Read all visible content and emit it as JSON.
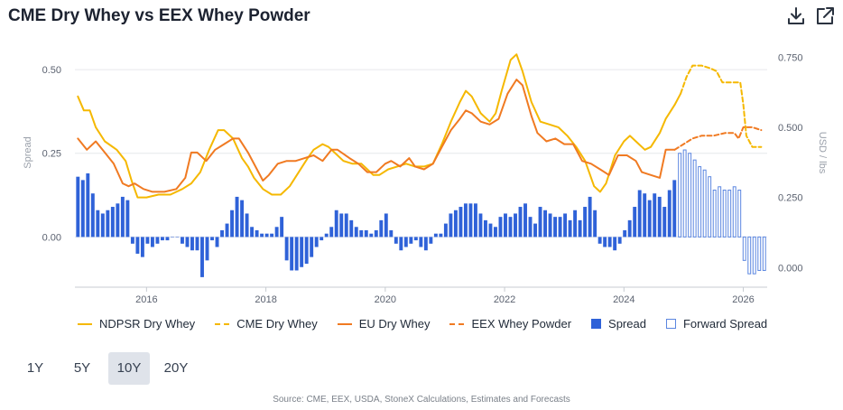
{
  "title": "CME Dry Whey vs EEX Whey Powder",
  "header_icons": [
    "download-icon",
    "external-link-icon"
  ],
  "legend": [
    {
      "label": "NDPSR Dry Whey",
      "style": "solid",
      "color": "#f5b800"
    },
    {
      "label": "CME Dry Whey",
      "style": "dashed",
      "color": "#f5b800"
    },
    {
      "label": "EU Dry Whey",
      "style": "solid",
      "color": "#f07a22"
    },
    {
      "label": "EEX Whey Powder",
      "style": "dashed",
      "color": "#f07a22"
    },
    {
      "label": "Spread",
      "style": "box",
      "color": "#2f62d8"
    },
    {
      "label": "Forward Spread",
      "style": "box-outline",
      "color": "#5b86e0"
    }
  ],
  "ranges": [
    {
      "label": "1Y",
      "active": false
    },
    {
      "label": "5Y",
      "active": false
    },
    {
      "label": "10Y",
      "active": true
    },
    {
      "label": "20Y",
      "active": false
    }
  ],
  "source": "Source: CME, EEX, USDA, StoneX Calculations, Estimates and Forecasts",
  "chart_data": {
    "type": "line",
    "x_ticks": [
      "2016",
      "2018",
      "2020",
      "2022",
      "2024",
      "2026"
    ],
    "xlim": [
      2014.8,
      2026.4
    ],
    "left_axis": {
      "label": "Spread",
      "ticks": [
        "0.00",
        "0.25",
        "0.50"
      ],
      "ylim": [
        -0.15,
        0.6
      ]
    },
    "right_axis": {
      "label": "USD / lbs",
      "ticks": [
        "0.000",
        "0.250",
        "0.500",
        "0.750"
      ],
      "ylim": [
        -0.07,
        0.825
      ]
    },
    "colors": {
      "ndpsr": "#f5b800",
      "eu": "#f07a22",
      "spread": "#2f62d8",
      "forward": "#5b86e0",
      "grid": "#e6e8ec",
      "axis": "#c7cbd1"
    },
    "series": [
      {
        "name": "NDPSR Dry Whey",
        "axis": "right",
        "style": "solid",
        "color": "#f5b800",
        "points": [
          [
            2014.85,
            0.61
          ],
          [
            2014.95,
            0.56
          ],
          [
            2015.05,
            0.56
          ],
          [
            2015.15,
            0.5
          ],
          [
            2015.3,
            0.45
          ],
          [
            2015.5,
            0.42
          ],
          [
            2015.65,
            0.38
          ],
          [
            2015.75,
            0.31
          ],
          [
            2015.85,
            0.25
          ],
          [
            2016.0,
            0.25
          ],
          [
            2016.2,
            0.26
          ],
          [
            2016.4,
            0.26
          ],
          [
            2016.6,
            0.28
          ],
          [
            2016.75,
            0.3
          ],
          [
            2016.9,
            0.34
          ],
          [
            2017.05,
            0.42
          ],
          [
            2017.2,
            0.49
          ],
          [
            2017.3,
            0.49
          ],
          [
            2017.45,
            0.46
          ],
          [
            2017.6,
            0.39
          ],
          [
            2017.7,
            0.36
          ],
          [
            2017.8,
            0.32
          ],
          [
            2017.95,
            0.28
          ],
          [
            2018.1,
            0.26
          ],
          [
            2018.25,
            0.26
          ],
          [
            2018.4,
            0.29
          ],
          [
            2018.55,
            0.34
          ],
          [
            2018.7,
            0.39
          ],
          [
            2018.8,
            0.42
          ],
          [
            2018.95,
            0.44
          ],
          [
            2019.05,
            0.43
          ],
          [
            2019.15,
            0.41
          ],
          [
            2019.3,
            0.38
          ],
          [
            2019.45,
            0.37
          ],
          [
            2019.6,
            0.37
          ],
          [
            2019.7,
            0.35
          ],
          [
            2019.8,
            0.33
          ],
          [
            2019.9,
            0.33
          ],
          [
            2020.05,
            0.35
          ],
          [
            2020.2,
            0.36
          ],
          [
            2020.35,
            0.37
          ],
          [
            2020.5,
            0.36
          ],
          [
            2020.65,
            0.36
          ],
          [
            2020.8,
            0.37
          ],
          [
            2020.95,
            0.44
          ],
          [
            2021.1,
            0.52
          ],
          [
            2021.25,
            0.59
          ],
          [
            2021.35,
            0.63
          ],
          [
            2021.45,
            0.61
          ],
          [
            2021.6,
            0.55
          ],
          [
            2021.75,
            0.52
          ],
          [
            2021.85,
            0.55
          ],
          [
            2021.95,
            0.63
          ],
          [
            2022.1,
            0.74
          ],
          [
            2022.2,
            0.76
          ],
          [
            2022.3,
            0.7
          ],
          [
            2022.45,
            0.59
          ],
          [
            2022.6,
            0.52
          ],
          [
            2022.75,
            0.51
          ],
          [
            2022.9,
            0.5
          ],
          [
            2023.05,
            0.47
          ],
          [
            2023.2,
            0.43
          ],
          [
            2023.35,
            0.38
          ],
          [
            2023.5,
            0.29
          ],
          [
            2023.6,
            0.27
          ],
          [
            2023.7,
            0.3
          ],
          [
            2023.85,
            0.4
          ],
          [
            2024.0,
            0.45
          ],
          [
            2024.1,
            0.47
          ],
          [
            2024.2,
            0.45
          ],
          [
            2024.35,
            0.42
          ],
          [
            2024.45,
            0.43
          ],
          [
            2024.6,
            0.48
          ],
          [
            2024.7,
            0.53
          ],
          [
            2024.85,
            0.58
          ],
          [
            2024.95,
            0.62
          ]
        ]
      },
      {
        "name": "CME Dry Whey",
        "axis": "right",
        "style": "dashed",
        "color": "#f5b800",
        "points": [
          [
            2024.95,
            0.62
          ],
          [
            2025.05,
            0.68
          ],
          [
            2025.15,
            0.72
          ],
          [
            2025.3,
            0.72
          ],
          [
            2025.45,
            0.71
          ],
          [
            2025.55,
            0.7
          ],
          [
            2025.65,
            0.66
          ],
          [
            2025.8,
            0.66
          ],
          [
            2025.9,
            0.66
          ],
          [
            2025.95,
            0.66
          ],
          [
            2026.0,
            0.58
          ],
          [
            2026.05,
            0.47
          ],
          [
            2026.15,
            0.43
          ],
          [
            2026.3,
            0.43
          ]
        ]
      },
      {
        "name": "EU Dry Whey",
        "axis": "right",
        "style": "solid",
        "color": "#f07a22",
        "points": [
          [
            2014.85,
            0.46
          ],
          [
            2015.0,
            0.42
          ],
          [
            2015.15,
            0.45
          ],
          [
            2015.3,
            0.41
          ],
          [
            2015.45,
            0.37
          ],
          [
            2015.6,
            0.3
          ],
          [
            2015.7,
            0.29
          ],
          [
            2015.8,
            0.3
          ],
          [
            2015.95,
            0.28
          ],
          [
            2016.1,
            0.27
          ],
          [
            2016.3,
            0.27
          ],
          [
            2016.5,
            0.28
          ],
          [
            2016.65,
            0.32
          ],
          [
            2016.75,
            0.41
          ],
          [
            2016.85,
            0.41
          ],
          [
            2017.0,
            0.38
          ],
          [
            2017.15,
            0.42
          ],
          [
            2017.3,
            0.44
          ],
          [
            2017.45,
            0.46
          ],
          [
            2017.55,
            0.46
          ],
          [
            2017.7,
            0.41
          ],
          [
            2017.85,
            0.35
          ],
          [
            2017.95,
            0.31
          ],
          [
            2018.05,
            0.33
          ],
          [
            2018.2,
            0.37
          ],
          [
            2018.35,
            0.38
          ],
          [
            2018.5,
            0.38
          ],
          [
            2018.65,
            0.39
          ],
          [
            2018.8,
            0.4
          ],
          [
            2018.95,
            0.38
          ],
          [
            2019.1,
            0.42
          ],
          [
            2019.2,
            0.42
          ],
          [
            2019.4,
            0.39
          ],
          [
            2019.55,
            0.37
          ],
          [
            2019.7,
            0.34
          ],
          [
            2019.85,
            0.34
          ],
          [
            2020.0,
            0.37
          ],
          [
            2020.1,
            0.38
          ],
          [
            2020.25,
            0.36
          ],
          [
            2020.4,
            0.39
          ],
          [
            2020.5,
            0.36
          ],
          [
            2020.65,
            0.35
          ],
          [
            2020.8,
            0.37
          ],
          [
            2020.95,
            0.43
          ],
          [
            2021.1,
            0.49
          ],
          [
            2021.25,
            0.53
          ],
          [
            2021.35,
            0.56
          ],
          [
            2021.45,
            0.55
          ],
          [
            2021.6,
            0.52
          ],
          [
            2021.75,
            0.51
          ],
          [
            2021.9,
            0.53
          ],
          [
            2022.05,
            0.62
          ],
          [
            2022.2,
            0.67
          ],
          [
            2022.3,
            0.65
          ],
          [
            2022.45,
            0.54
          ],
          [
            2022.55,
            0.48
          ],
          [
            2022.7,
            0.45
          ],
          [
            2022.85,
            0.46
          ],
          [
            2023.0,
            0.44
          ],
          [
            2023.15,
            0.44
          ],
          [
            2023.3,
            0.38
          ],
          [
            2023.45,
            0.37
          ],
          [
            2023.6,
            0.35
          ],
          [
            2023.75,
            0.33
          ],
          [
            2023.9,
            0.4
          ],
          [
            2024.05,
            0.4
          ],
          [
            2024.2,
            0.38
          ],
          [
            2024.3,
            0.34
          ],
          [
            2024.45,
            0.33
          ],
          [
            2024.6,
            0.32
          ],
          [
            2024.7,
            0.42
          ],
          [
            2024.85,
            0.42
          ]
        ]
      },
      {
        "name": "EEX Whey Powder",
        "axis": "right",
        "style": "dashed",
        "color": "#f07a22",
        "points": [
          [
            2024.85,
            0.42
          ],
          [
            2025.0,
            0.44
          ],
          [
            2025.15,
            0.46
          ],
          [
            2025.3,
            0.47
          ],
          [
            2025.5,
            0.47
          ],
          [
            2025.7,
            0.48
          ],
          [
            2025.85,
            0.48
          ],
          [
            2025.92,
            0.46
          ],
          [
            2026.0,
            0.5
          ],
          [
            2026.15,
            0.5
          ],
          [
            2026.3,
            0.49
          ]
        ]
      }
    ],
    "spread": {
      "name": "Spread",
      "axis": "left",
      "start": 2014.85,
      "step": 0.0833,
      "values": [
        0.18,
        0.17,
        0.19,
        0.13,
        0.08,
        0.07,
        0.08,
        0.09,
        0.1,
        0.12,
        0.11,
        -0.02,
        -0.05,
        -0.06,
        -0.02,
        -0.03,
        -0.02,
        -0.01,
        -0.01,
        0.0,
        0.0,
        -0.02,
        -0.03,
        -0.04,
        -0.04,
        -0.12,
        -0.07,
        -0.01,
        -0.03,
        0.02,
        0.04,
        0.08,
        0.12,
        0.11,
        0.07,
        0.03,
        0.02,
        0.01,
        0.01,
        0.01,
        0.03,
        0.06,
        -0.07,
        -0.1,
        -0.1,
        -0.09,
        -0.08,
        -0.06,
        -0.03,
        -0.01,
        0.01,
        0.03,
        0.08,
        0.07,
        0.07,
        0.05,
        0.03,
        0.02,
        0.02,
        0.01,
        0.02,
        0.05,
        0.07,
        0.02,
        -0.02,
        -0.04,
        -0.03,
        -0.02,
        -0.01,
        -0.03,
        -0.04,
        -0.02,
        0.01,
        0.01,
        0.04,
        0.07,
        0.08,
        0.09,
        0.1,
        0.1,
        0.1,
        0.07,
        0.05,
        0.04,
        0.03,
        0.06,
        0.07,
        0.06,
        0.07,
        0.09,
        0.1,
        0.06,
        0.04,
        0.09,
        0.08,
        0.07,
        0.06,
        0.06,
        0.07,
        0.05,
        0.08,
        0.05,
        0.09,
        0.12,
        0.08,
        -0.02,
        -0.03,
        -0.03,
        -0.04,
        -0.02,
        0.02,
        0.05,
        0.09,
        0.14,
        0.13,
        0.11,
        0.13,
        0.12,
        0.09,
        0.14,
        0.17
      ]
    },
    "forward_spread": {
      "name": "Forward Spread",
      "axis": "left",
      "start": 2024.935,
      "step": 0.0833,
      "values": [
        0.25,
        0.26,
        0.25,
        0.23,
        0.21,
        0.2,
        0.18,
        0.14,
        0.15,
        0.14,
        0.14,
        0.15,
        0.14,
        -0.07,
        -0.11,
        -0.11,
        -0.1,
        -0.1
      ]
    }
  }
}
